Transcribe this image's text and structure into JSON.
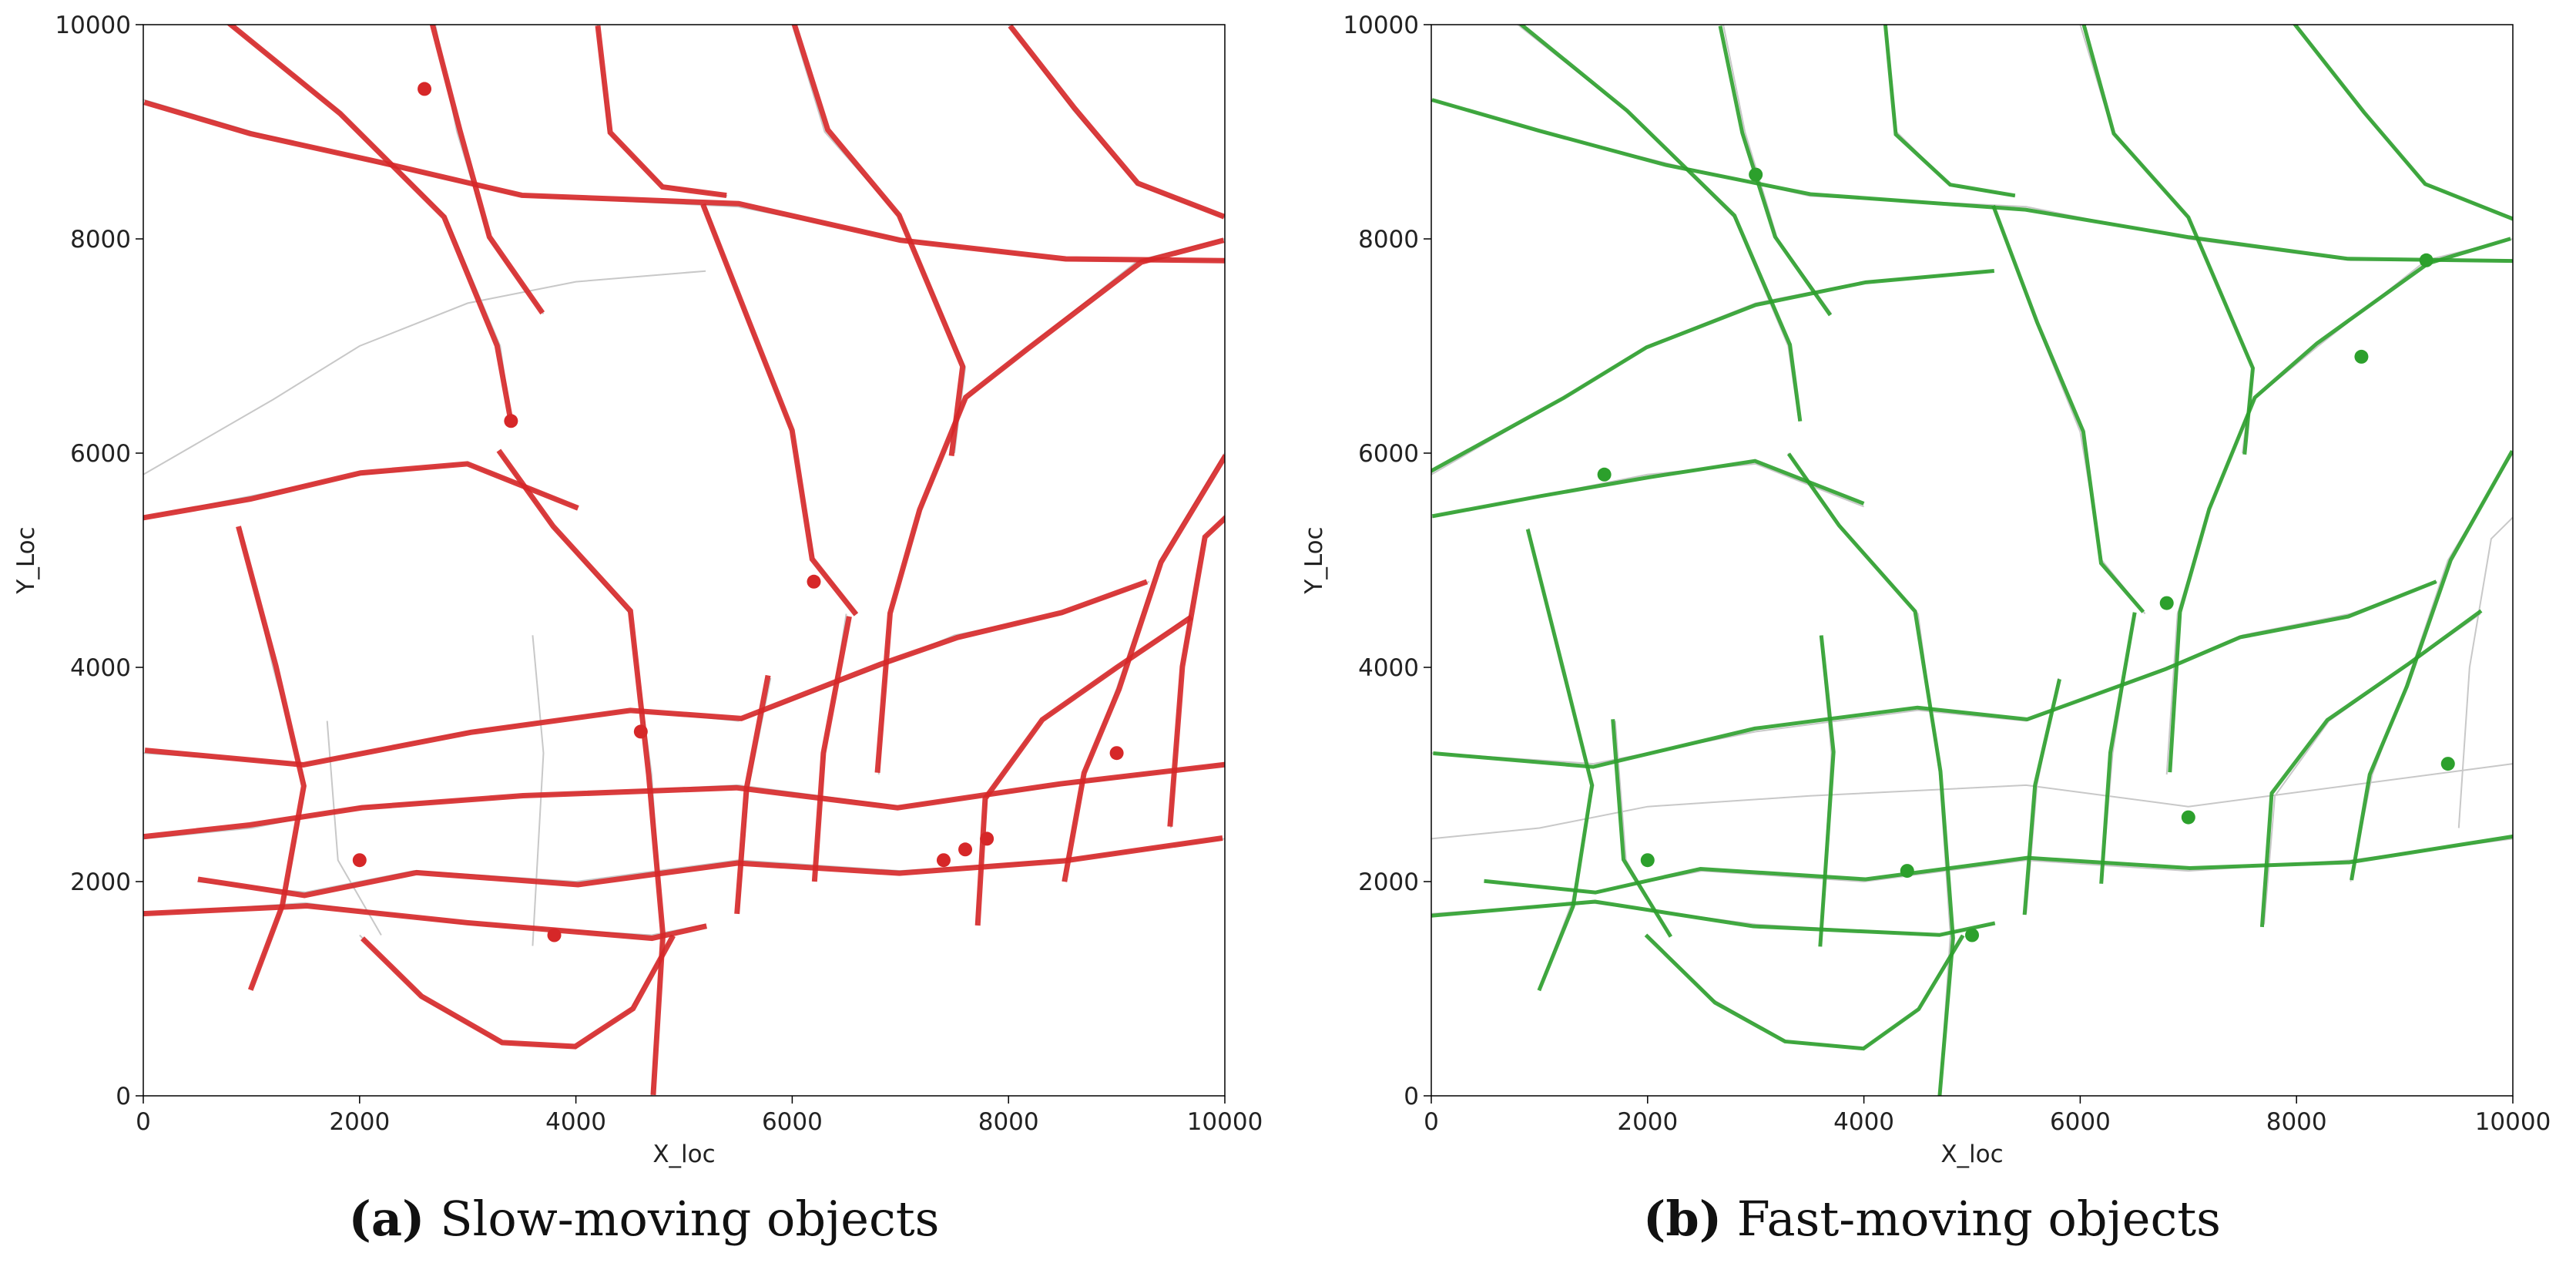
{
  "chart_data": [
    {
      "type": "scatter",
      "title": "",
      "xlabel": "X_loc",
      "ylabel": "Y_Loc",
      "xlim": [
        0,
        10000
      ],
      "ylim": [
        0,
        10000
      ],
      "xticks": [
        "0",
        "2000",
        "4000",
        "6000",
        "8000",
        "10000"
      ],
      "yticks": [
        "0",
        "2000",
        "4000",
        "6000",
        "8000",
        "10000"
      ],
      "grid": false,
      "background_roads_color": "#c8c8c8",
      "series": [
        {
          "color": "#d62728",
          "description_points": [
            [
              7600,
              2300
            ],
            [
              7400,
              2200
            ],
            [
              7800,
              2400
            ],
            [
              3800,
              1500
            ],
            [
              2000,
              2200
            ],
            [
              3400,
              6300
            ],
            [
              4600,
              3400
            ],
            [
              6200,
              4800
            ],
            [
              9000,
              3200
            ],
            [
              2600,
              9400
            ]
          ]
        }
      ],
      "caption_letter": "(a)",
      "caption_text": " Slow-moving objects"
    },
    {
      "type": "scatter",
      "title": "",
      "xlabel": "X_loc",
      "ylabel": "Y_Loc",
      "xlim": [
        0,
        10000
      ],
      "ylim": [
        0,
        10000
      ],
      "xticks": [
        "0",
        "2000",
        "4000",
        "6000",
        "8000",
        "10000"
      ],
      "yticks": [
        "0",
        "2000",
        "4000",
        "6000",
        "8000",
        "10000"
      ],
      "grid": false,
      "background_roads_color": "#c8c8c8",
      "series": [
        {
          "color": "#2ca02c",
          "description_points": [
            [
              5000,
              1500
            ],
            [
              2000,
              2200
            ],
            [
              6800,
              4600
            ],
            [
              9400,
              3100
            ],
            [
              3000,
              8600
            ],
            [
              8600,
              6900
            ],
            [
              1600,
              5800
            ],
            [
              7000,
              2600
            ],
            [
              4400,
              2100
            ],
            [
              9200,
              7800
            ]
          ]
        }
      ],
      "caption_letter": "(b)",
      "caption_text": " Fast-moving objects"
    }
  ]
}
